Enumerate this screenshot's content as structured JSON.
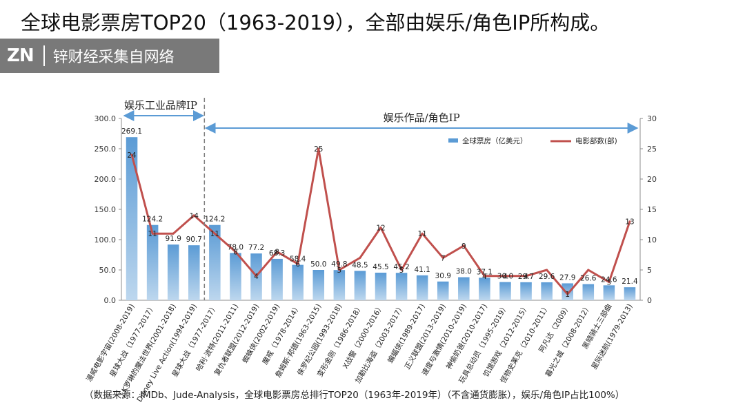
{
  "page_title": "全球电影票房TOP20（1963-2019），全部由娱乐/角色IP所构成。",
  "watermark": {
    "mark": "ZN",
    "text": "锌财经采集自网络",
    "color": "#6f6f6f"
  },
  "source_note": "（数据来源：IMDb、Jude-Analysis，全球电影票房总排行TOP20（1963年-2019年）（不含通货膨胀），娱乐/角色IP占比100%）",
  "chart_data": {
    "type": "bar",
    "categories": [
      "漫威电影宇宙(2008-2019)",
      "星球大战（1977-2017）",
      "J.K罗琳的魔法世界(2001-2018)",
      "Disney Live Action(1994-2019)",
      "星球大战（1977-2017）",
      "哈利·波特(2011-2011)",
      "复仇者联盟(2012-2019)",
      "蜘蛛侠(2002-2019)",
      "魔戒（1978-2014）",
      "詹姆斯·邦德(1963-2015)",
      "侏罗纪公园(1993-2018)",
      "变形金刚（1986-2018）",
      "X战警（2000-2016）",
      "加勒比海盗（2003-2017）",
      "蝙蝠侠(1989-2017)",
      "正义联盟(2013-2019)",
      "速度与激情(2010-2019)",
      "神偷奶爸(2010-2017)",
      "玩具总动员（1995-2019）",
      "饥饿游戏（2012-2015）",
      "怪物史莱克（2010-2011）",
      "阿凡达（2009）",
      "暮光之城（2008-2012）",
      "黑暗骑士三部曲",
      "星际迷航(1979-2013)"
    ],
    "series": [
      {
        "name": "全球票房（亿美元）",
        "axis": "left",
        "color": "#5b9bd5",
        "values": [
          269.1,
          124.2,
          91.9,
          90.7,
          124.2,
          78.0,
          77.2,
          68.3,
          58.4,
          50.0,
          49.8,
          48.5,
          45.5,
          45.2,
          41.1,
          30.9,
          38.0,
          37.1,
          30.0,
          29.7,
          29.6,
          27.9,
          26.6,
          24.6,
          21.4
        ],
        "labels": [
          "269.1",
          "124.2",
          "91.9",
          "90.7",
          "124.2",
          "78.0",
          "77.2",
          "68.3",
          "58.4",
          "50.0",
          "49.8",
          "48.5",
          "45.5",
          "45.2",
          "41.1",
          "30.9",
          "38.0",
          "37.1",
          "30.0",
          "29.7",
          "29.6",
          "27.9",
          "26.6",
          "24.6",
          "21.4"
        ]
      },
      {
        "name": "电影部数(部)",
        "axis": "right",
        "color": "#c0504d",
        "values": [
          24,
          11,
          11,
          14,
          11,
          8,
          4,
          8,
          6,
          25,
          5,
          7,
          12,
          5,
          11,
          7,
          9,
          4,
          4,
          4,
          5,
          1,
          5,
          3,
          13
        ],
        "labels": [
          "24",
          "11",
          "",
          "14",
          "11",
          "8",
          "4",
          "8",
          "6",
          "25",
          "5",
          "",
          "12",
          "5",
          "11",
          "7",
          "9",
          "4",
          "4",
          "4",
          "",
          "1",
          "",
          "3",
          "13"
        ]
      }
    ],
    "left_axis": {
      "min": 0,
      "max": 300,
      "ticks": [
        "0.0",
        "50.0",
        "100.0",
        "150.0",
        "200.0",
        "250.0",
        "300.0"
      ]
    },
    "right_axis": {
      "min": 0,
      "max": 30,
      "ticks": [
        "0",
        "5",
        "10",
        "15",
        "20",
        "25",
        "30"
      ]
    },
    "brackets": [
      {
        "label": "娱乐工业品牌IP",
        "from_index": 0,
        "to_index": 3
      },
      {
        "label": "娱乐作品/角色IP",
        "from_index": 4,
        "to_index": 24
      }
    ],
    "divider_after_index": 3,
    "legend_position": "top-right",
    "grid": false
  }
}
